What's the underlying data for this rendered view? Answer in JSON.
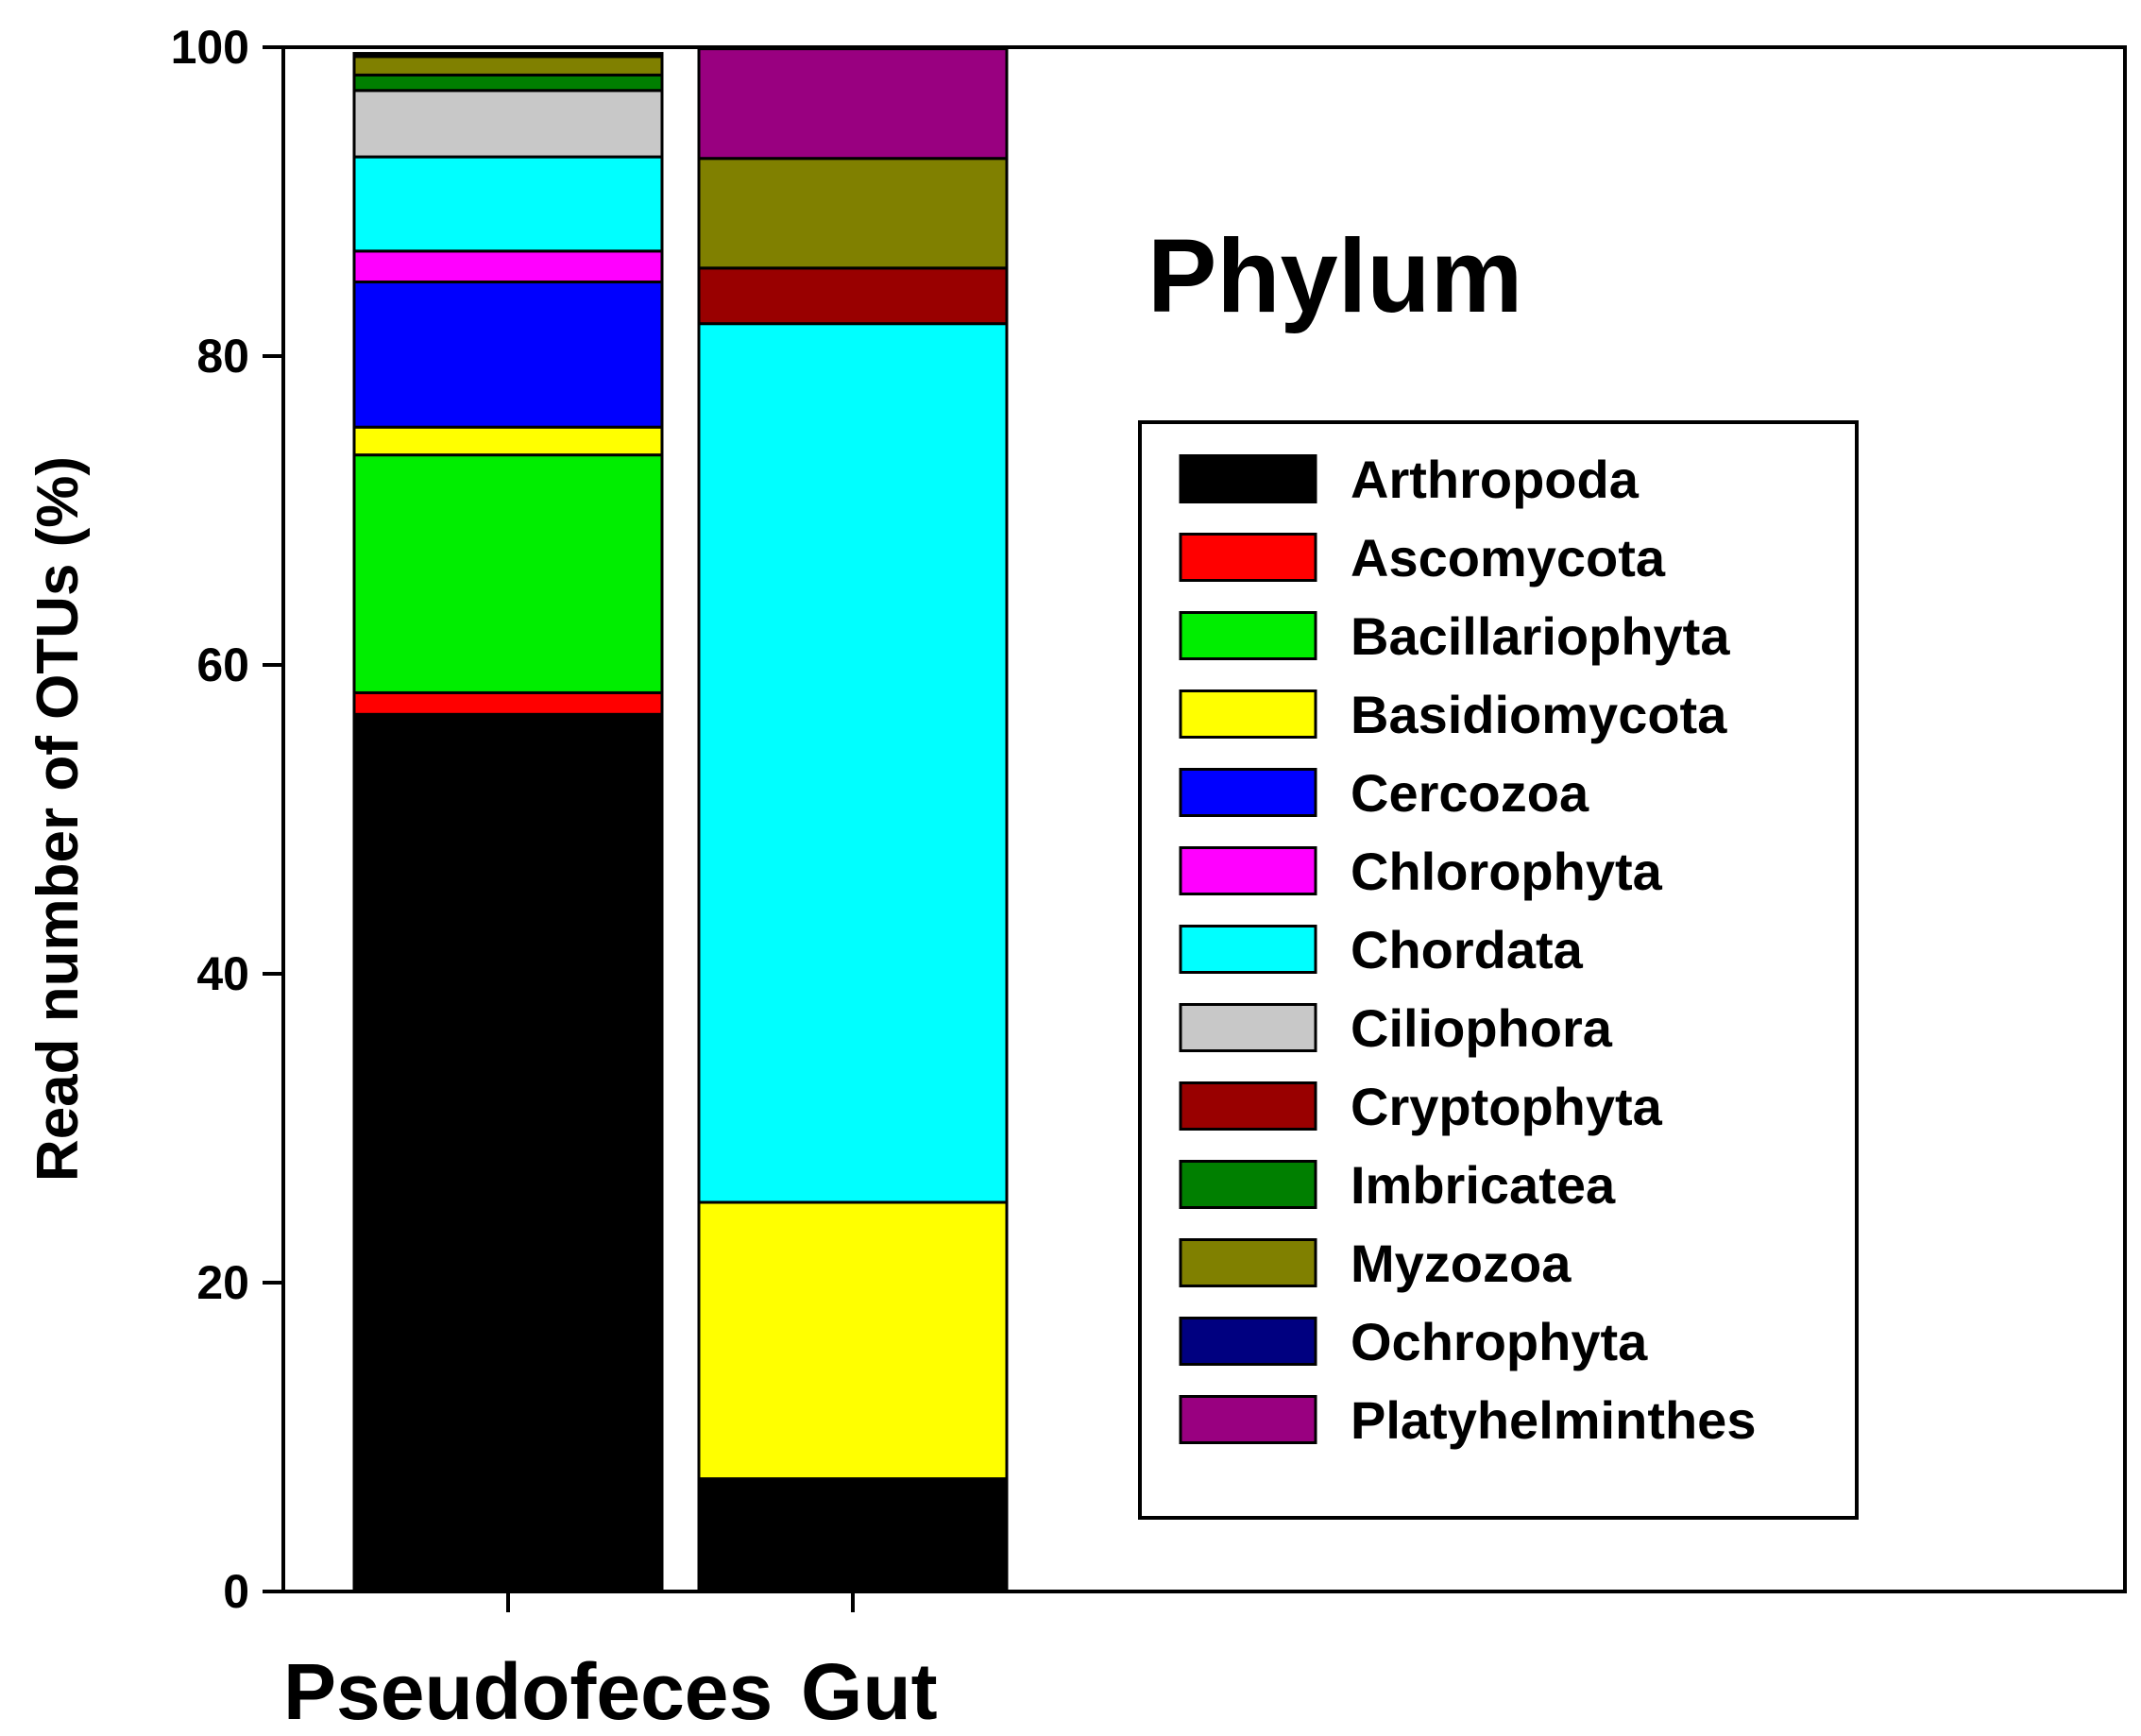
{
  "chart_data": {
    "type": "bar",
    "stacked": true,
    "title": "Phylum",
    "xlabel": "",
    "ylabel": "Read number of OTUs (%)",
    "ylim": [
      0,
      100
    ],
    "yticks": [
      "0",
      "20",
      "40",
      "60",
      "80",
      "100"
    ],
    "categories": [
      "Pseudofeces",
      "Gut"
    ],
    "grid": false,
    "legend_position": "right",
    "series": [
      {
        "name": "Arthropoda",
        "color": "#000000",
        "values": [
          56.8,
          7.3
        ]
      },
      {
        "name": "Ascomycota",
        "color": "#ff0000",
        "values": [
          1.4,
          0
        ]
      },
      {
        "name": "Bacillariophyta",
        "color": "#00ee00",
        "values": [
          15.4,
          0
        ]
      },
      {
        "name": "Basidiomycota",
        "color": "#ffff00",
        "values": [
          1.8,
          17.9
        ]
      },
      {
        "name": "Cercozoa",
        "color": "#0000ff",
        "values": [
          9.4,
          0
        ]
      },
      {
        "name": "Chlorophyta",
        "color": "#ff00ff",
        "values": [
          2.0,
          0
        ]
      },
      {
        "name": "Chordata",
        "color": "#00ffff",
        "values": [
          6.1,
          56.9
        ]
      },
      {
        "name": "Ciliophora",
        "color": "#c8c8c8",
        "values": [
          4.3,
          0
        ]
      },
      {
        "name": "Cryptophyta",
        "color": "#990000",
        "values": [
          0,
          3.6
        ]
      },
      {
        "name": "Imbricatea",
        "color": "#007f00",
        "values": [
          1.0,
          0
        ]
      },
      {
        "name": "Myzozoa",
        "color": "#808000",
        "values": [
          1.2,
          7.1
        ]
      },
      {
        "name": "Ochrophyta",
        "color": "#000080",
        "values": [
          0.1,
          0
        ]
      },
      {
        "name": "Platyhelminthes",
        "color": "#990080",
        "values": [
          0.1,
          7.1
        ]
      }
    ]
  }
}
